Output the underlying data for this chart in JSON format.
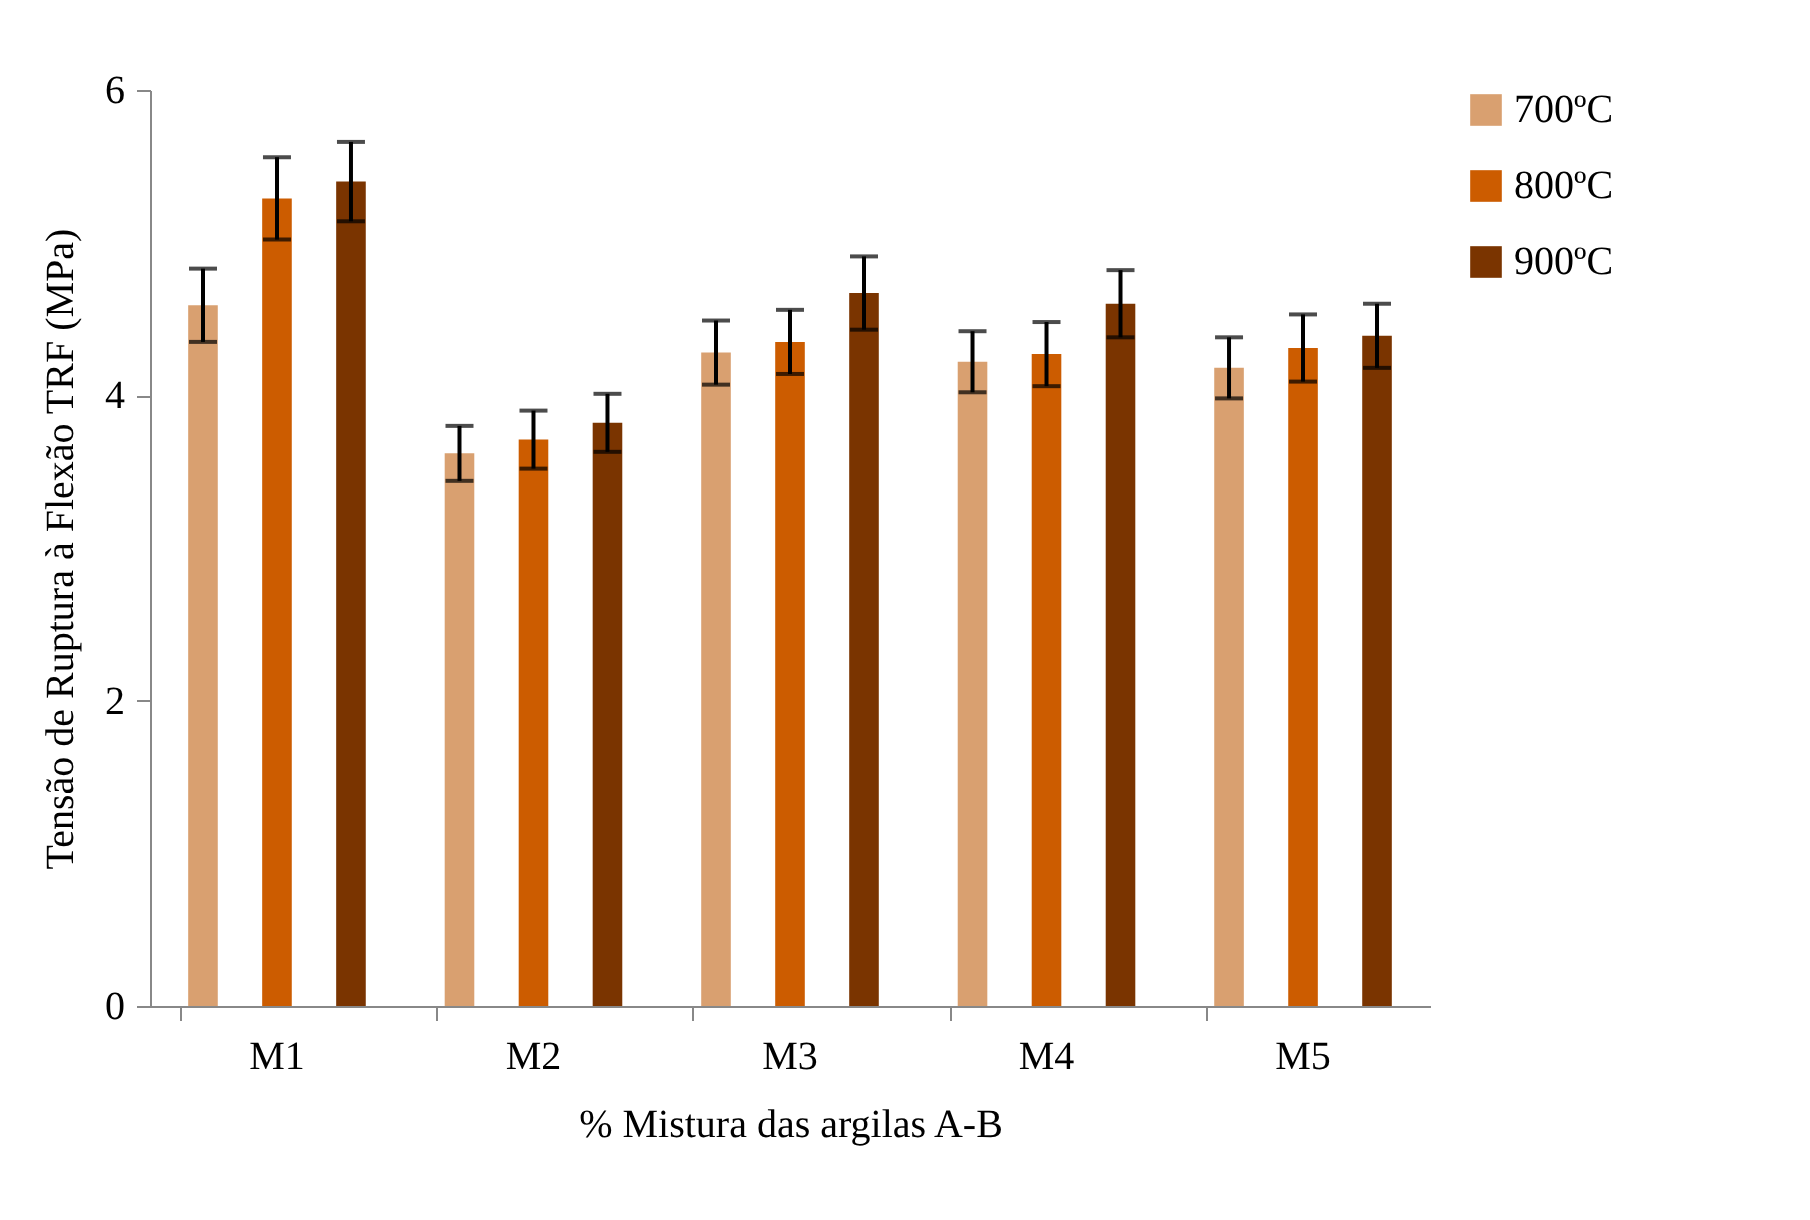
{
  "chart_data": {
    "type": "bar",
    "xlabel": "% Mistura das argilas A-B",
    "ylabel": "Tensão de Ruptura à Flexão TRF (MPa)",
    "categories": [
      "M1",
      "M2",
      "M3",
      "M4",
      "M5"
    ],
    "series": [
      {
        "name": "700ºC",
        "color": "#d9a070",
        "values": [
          4.59,
          3.62,
          4.28,
          4.22,
          4.18
        ],
        "errors": [
          0.24,
          0.18,
          0.21,
          0.2,
          0.2
        ]
      },
      {
        "name": "800ºC",
        "color": "#cc5c00",
        "values": [
          5.29,
          3.71,
          4.35,
          4.27,
          4.31
        ],
        "errors": [
          0.27,
          0.19,
          0.21,
          0.21,
          0.22
        ]
      },
      {
        "name": "900ºC",
        "color": "#7a3400",
        "values": [
          5.4,
          3.82,
          4.67,
          4.6,
          4.39
        ],
        "errors": [
          0.26,
          0.19,
          0.24,
          0.22,
          0.21
        ]
      }
    ],
    "ylim": [
      0,
      6
    ],
    "yticks": [
      0,
      2,
      4,
      6
    ],
    "grid": false,
    "legend": "right"
  }
}
